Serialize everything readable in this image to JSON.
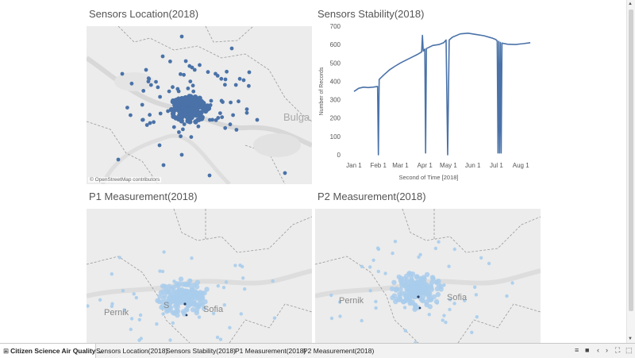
{
  "dashboard": {
    "title_location": "Sensors Location(2018)",
    "title_stability": "Sensors Stability(2018)",
    "title_p1": "P1 Measurement(2018)",
    "title_p2": "P2 Measurement(2018)",
    "attribution": "© OpenStreetMap contributors",
    "map_labels": {
      "bulgaria_partial": "Bulga",
      "pernik": "Pernik",
      "sofia_overlap": "S",
      "sofia": "Sofia"
    }
  },
  "colors": {
    "dark_blue": "#4a72a8",
    "light_blue": "#a9cdec",
    "map_bg": "#ececec"
  },
  "chart_data": {
    "type": "line",
    "title": "Sensors Stability(2018)",
    "xlabel": "Second of Time [2018]",
    "ylabel": "Number of Records",
    "x_ticks": [
      "Jan 1",
      "Feb 1",
      "Mar 1",
      "Apr 1",
      "May 1",
      "Jun 1",
      "Jul 1",
      "Aug 1"
    ],
    "y_ticks": [
      0,
      100,
      200,
      300,
      400,
      500,
      600,
      700
    ],
    "ylim": [
      0,
      700
    ],
    "xlim_days": [
      -5,
      235
    ],
    "grid": false,
    "series": [
      {
        "points": [
          [
            0,
            345
          ],
          [
            6,
            362
          ],
          [
            12,
            368
          ],
          [
            18,
            366
          ],
          [
            24,
            368
          ],
          [
            30,
            372
          ],
          [
            31,
            0
          ],
          [
            32,
            410
          ],
          [
            38,
            435
          ],
          [
            45,
            462
          ],
          [
            52,
            482
          ],
          [
            59,
            500
          ],
          [
            66,
            515
          ],
          [
            73,
            530
          ],
          [
            80,
            545
          ],
          [
            86,
            560
          ],
          [
            87,
            650
          ],
          [
            88,
            565
          ],
          [
            90,
            575
          ],
          [
            91,
            10
          ],
          [
            92,
            578
          ],
          [
            100,
            595
          ],
          [
            108,
            600
          ],
          [
            114,
            610
          ],
          [
            117,
            625
          ],
          [
            119,
            0
          ],
          [
            121,
            625
          ],
          [
            125,
            640
          ],
          [
            135,
            658
          ],
          [
            145,
            662
          ],
          [
            155,
            655
          ],
          [
            165,
            648
          ],
          [
            175,
            636
          ],
          [
            180,
            628
          ],
          [
            182,
            620
          ],
          [
            183,
            10
          ],
          [
            184,
            618
          ],
          [
            185,
            10
          ],
          [
            186,
            612
          ],
          [
            187,
            10
          ],
          [
            188,
            608
          ],
          [
            195,
            602
          ],
          [
            205,
            600
          ],
          [
            215,
            605
          ],
          [
            224,
            610
          ]
        ]
      }
    ]
  },
  "tabs": [
    {
      "label": "Citizen Science Air Quality ..."
    },
    {
      "label": "Sensors Location(2018)"
    },
    {
      "label": "Sensors Stability(2018)"
    },
    {
      "label": "P1 Measurement(2018)"
    },
    {
      "label": "P2 Measurement(2018)"
    }
  ],
  "tab_controls": {
    "grid": "⊞",
    "list": "≡",
    "square": "■",
    "prev": "‹",
    "next": "›",
    "fullscreen": "⛶",
    "present": "⬚"
  }
}
